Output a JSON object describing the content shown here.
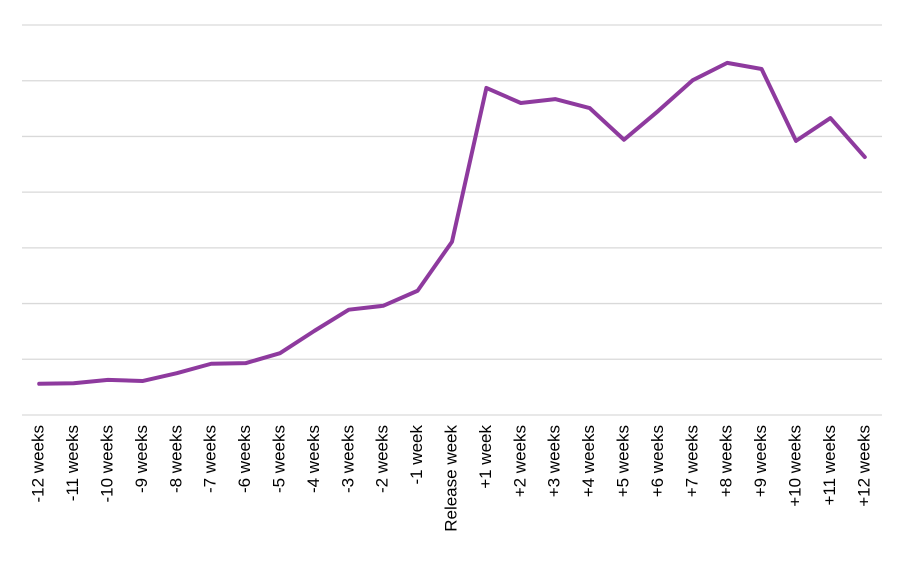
{
  "chart_data": {
    "type": "line",
    "categories": [
      "-12 weeks",
      "-11 weeks",
      "-10 weeks",
      "-9 weeks",
      "-8 weeks",
      "-7 weeks",
      "-6 weeks",
      "-5 weeks",
      "-4 weeks",
      "-3 weeks",
      "-2 weeks",
      "-1 week",
      "Release week",
      "+1 week",
      "+2 weeks",
      "+3 weeks",
      "+4 weeks",
      "+5 weeks",
      "+6 weeks",
      "+7 weeks",
      "+8 weeks",
      "+9 weeks",
      "+10 weeks",
      "+11 weeks",
      "+12 weeks"
    ],
    "values": [
      0.56,
      0.57,
      0.63,
      0.61,
      0.75,
      0.92,
      0.93,
      1.11,
      1.51,
      1.89,
      1.96,
      2.23,
      3.11,
      5.87,
      5.6,
      5.67,
      5.51,
      4.94,
      5.46,
      6.01,
      6.32,
      6.21,
      4.92,
      5.33,
      4.63
    ],
    "color": "#8e3a9e",
    "ylim": [
      0,
      7
    ],
    "ygrid": [
      0,
      1,
      2,
      3,
      4,
      5,
      6,
      7
    ],
    "grid": true
  }
}
